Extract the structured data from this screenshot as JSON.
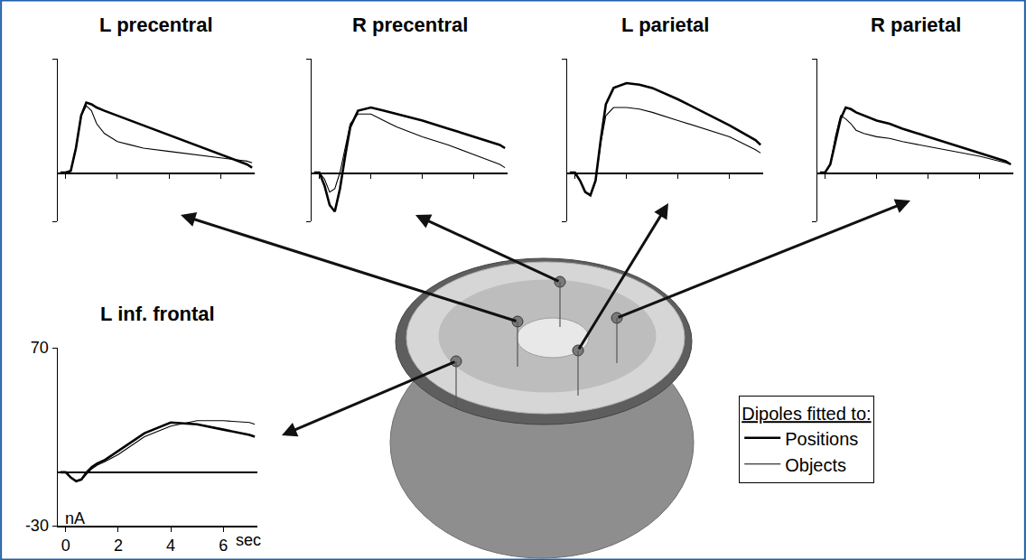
{
  "chart_data": [
    {
      "type": "line",
      "title": "L precentral",
      "x": [
        -0.2,
        0,
        0.2,
        0.4,
        0.6,
        0.8,
        1,
        1.2,
        1.5,
        2,
        2.5,
        3,
        4,
        5,
        6,
        7,
        7.2
      ],
      "xlim": [
        -0.3,
        7.3
      ],
      "xticks": [
        0,
        2,
        4,
        6
      ],
      "ylim": [
        -30,
        70
      ],
      "yticks": [
        -30,
        70
      ],
      "tick_labels": false,
      "series": [
        {
          "name": "Positions",
          "color": "#000000",
          "line_style": "thick",
          "values": [
            0,
            0,
            1,
            15,
            35,
            43,
            42,
            40,
            38,
            35,
            32,
            29,
            23,
            17,
            11,
            5,
            3
          ]
        },
        {
          "name": "Objects",
          "color": "#000000",
          "line_style": "thin",
          "values": [
            0,
            0,
            1,
            15,
            35,
            41,
            38,
            30,
            24,
            19,
            17,
            15,
            13,
            11,
            9,
            7,
            6
          ]
        }
      ]
    },
    {
      "type": "line",
      "title": "R precentral",
      "x": [
        -0.2,
        0,
        0.2,
        0.4,
        0.6,
        0.8,
        1,
        1.2,
        1.5,
        2,
        2.5,
        3,
        4,
        5,
        6,
        7,
        7.2
      ],
      "xlim": [
        -0.3,
        7.3
      ],
      "xticks": [
        0,
        2,
        4,
        6
      ],
      "ylim": [
        -30,
        70
      ],
      "yticks": [
        -30,
        70
      ],
      "tick_labels": false,
      "series": [
        {
          "name": "Positions",
          "color": "#000000",
          "line_style": "thick",
          "values": [
            0,
            0,
            -8,
            -20,
            -24,
            -10,
            10,
            28,
            38,
            40,
            38,
            36,
            32,
            27,
            22,
            17,
            15
          ]
        },
        {
          "name": "Objects",
          "color": "#000000",
          "line_style": "thin",
          "values": [
            0,
            0,
            -4,
            -12,
            -10,
            0,
            15,
            30,
            36,
            36,
            32,
            28,
            22,
            17,
            11,
            5,
            3
          ]
        }
      ]
    },
    {
      "type": "line",
      "title": "L parietal",
      "x": [
        -0.2,
        0,
        0.2,
        0.4,
        0.6,
        0.8,
        1,
        1.2,
        1.5,
        2,
        2.5,
        3,
        4,
        5,
        6,
        7,
        7.2
      ],
      "xlim": [
        -0.3,
        7.3
      ],
      "xticks": [
        0,
        2,
        4,
        6
      ],
      "ylim": [
        -30,
        70
      ],
      "yticks": [
        -30,
        70
      ],
      "tick_labels": false,
      "series": [
        {
          "name": "Positions",
          "color": "#000000",
          "line_style": "thick",
          "values": [
            0,
            0,
            -5,
            -12,
            -14,
            -5,
            20,
            42,
            52,
            55,
            54,
            52,
            45,
            37,
            29,
            20,
            17
          ]
        },
        {
          "name": "Objects",
          "color": "#000000",
          "line_style": "thin",
          "values": [
            0,
            0,
            -5,
            -12,
            -14,
            -5,
            18,
            35,
            40,
            40,
            39,
            37,
            32,
            27,
            22,
            14,
            12
          ]
        }
      ]
    },
    {
      "type": "line",
      "title": "R parietal",
      "x": [
        -0.2,
        0,
        0.2,
        0.4,
        0.6,
        0.8,
        1,
        1.2,
        1.5,
        2,
        2.5,
        3,
        4,
        5,
        6,
        7,
        7.2
      ],
      "xlim": [
        -0.3,
        7.3
      ],
      "xticks": [
        0,
        2,
        4,
        6
      ],
      "ylim": [
        -30,
        70
      ],
      "yticks": [
        -30,
        70
      ],
      "tick_labels": false,
      "series": [
        {
          "name": "Positions",
          "color": "#000000",
          "line_style": "thick",
          "values": [
            0,
            0,
            5,
            20,
            33,
            40,
            39,
            37,
            35,
            32,
            30,
            27,
            22,
            17,
            12,
            7,
            5
          ]
        },
        {
          "name": "Objects",
          "color": "#000000",
          "line_style": "thin",
          "values": [
            0,
            0,
            5,
            22,
            35,
            33,
            30,
            26,
            24,
            22,
            21,
            19,
            16,
            13,
            10,
            6,
            5
          ]
        }
      ]
    },
    {
      "type": "line",
      "title": "L inf. frontal",
      "xlabel": "sec",
      "ylabel": "nA",
      "x": [
        -0.2,
        0,
        0.2,
        0.4,
        0.6,
        0.8,
        1,
        1.2,
        1.5,
        2,
        2.5,
        3,
        4,
        5,
        6,
        7,
        7.2
      ],
      "xlim": [
        -0.3,
        7.3
      ],
      "xticks": [
        0,
        2,
        4,
        6
      ],
      "ylim": [
        -30,
        70
      ],
      "yticks": [
        -30,
        70
      ],
      "series": [
        {
          "name": "Positions",
          "color": "#000000",
          "line_style": "thick",
          "values": [
            0,
            0,
            -3,
            -5,
            -4,
            0,
            3,
            5,
            7,
            12,
            17,
            22,
            28,
            27,
            24,
            21,
            20
          ]
        },
        {
          "name": "Objects",
          "color": "#000000",
          "line_style": "thin",
          "values": [
            0,
            0,
            -3,
            -5,
            -4,
            -1,
            2,
            4,
            6,
            10,
            15,
            20,
            26,
            29,
            29,
            28,
            27
          ]
        }
      ]
    }
  ],
  "legend": "lower right",
  "legend_title": "Dipoles fitted to:"
}
